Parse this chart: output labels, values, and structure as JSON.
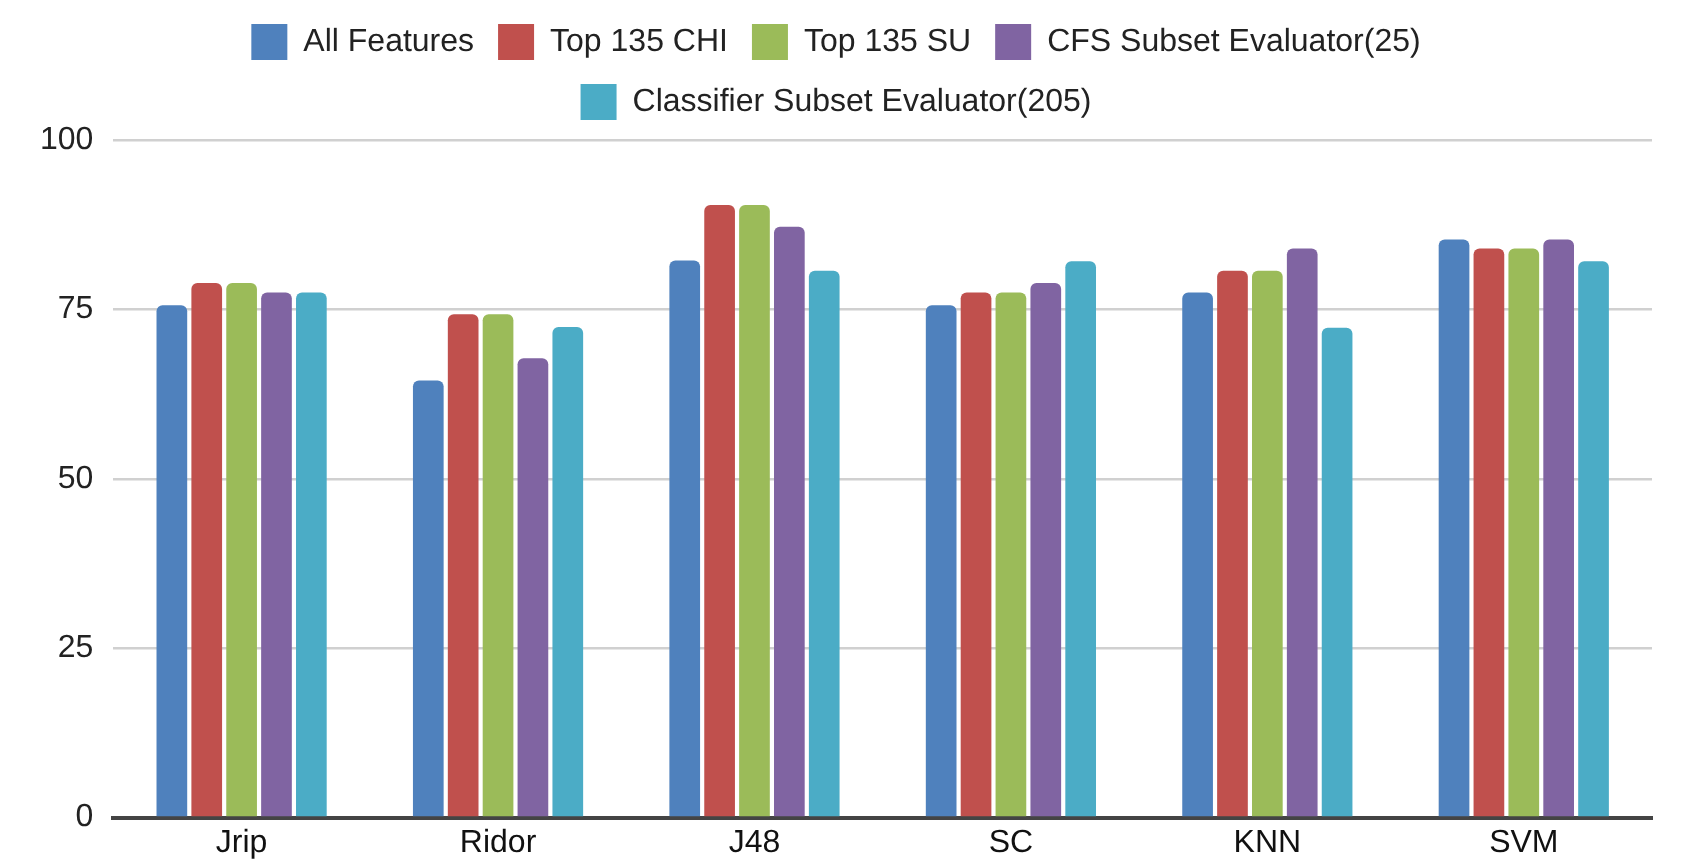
{
  "chart_data": {
    "type": "bar",
    "categories": [
      "Jrip",
      "Ridor",
      "J48",
      "SC",
      "KNN",
      "SVM"
    ],
    "series": [
      {
        "name": "All Features",
        "color": "#4f81bd",
        "values": [
          75.6,
          64.5,
          82.2,
          75.6,
          77.5,
          85.3
        ]
      },
      {
        "name": "Top 135 CHI",
        "color": "#c0504d",
        "values": [
          78.9,
          74.3,
          90.4,
          77.5,
          80.7,
          84.0
        ]
      },
      {
        "name": "Top 135 SU",
        "color": "#9bbb59",
        "values": [
          78.9,
          74.3,
          90.4,
          77.5,
          80.7,
          84.0
        ]
      },
      {
        "name": "CFS Subset Evaluator(25)",
        "color": "#8064a2",
        "values": [
          77.5,
          67.8,
          87.2,
          78.9,
          84.0,
          85.3
        ]
      },
      {
        "name": "Classifier Subset Evaluator(205)",
        "color": "#4bacc6",
        "values": [
          77.5,
          72.4,
          80.7,
          82.1,
          72.3,
          82.1
        ]
      }
    ],
    "ylim": [
      0,
      100
    ],
    "yticks": [
      0,
      25,
      50,
      75,
      100
    ],
    "grid": "y",
    "legend": "top"
  }
}
